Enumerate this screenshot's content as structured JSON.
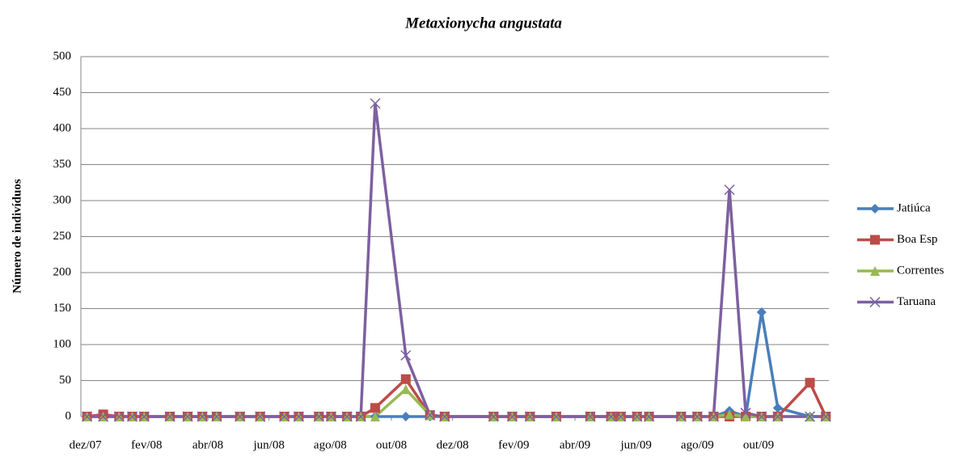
{
  "chart_data": {
    "type": "line",
    "title": "Metaxionycha angustata",
    "ylabel": "Número de indivíduos",
    "x": [
      0.05,
      0.58,
      1.1,
      1.53,
      1.92,
      2.76,
      3.34,
      3.82,
      4.29,
      5.05,
      5.71,
      6.5,
      6.97,
      7.63,
      8.03,
      8.55,
      9.0,
      9.47,
      10.47,
      11.26,
      11.74,
      13.34,
      13.95,
      14.53,
      15.39,
      16.5,
      17.18,
      17.5,
      18.03,
      18.42,
      19.47,
      20.0,
      20.53,
      21.05,
      21.58,
      22.1,
      22.63,
      23.68,
      24.2
    ],
    "xlim": [
      -0.15,
      24.3
    ],
    "xticks": [
      {
        "value": 0,
        "label": "dez/07"
      },
      {
        "value": 2,
        "label": "fev/08"
      },
      {
        "value": 4,
        "label": "abr/08"
      },
      {
        "value": 6,
        "label": "jun/08"
      },
      {
        "value": 8,
        "label": "ago/08"
      },
      {
        "value": 10,
        "label": "out/08"
      },
      {
        "value": 12,
        "label": "dez/08"
      },
      {
        "value": 14,
        "label": "fev/09"
      },
      {
        "value": 16,
        "label": "abr/09"
      },
      {
        "value": 18,
        "label": "jun/09"
      },
      {
        "value": 20,
        "label": "ago/09"
      },
      {
        "value": 22,
        "label": "out/09"
      }
    ],
    "ylim": [
      0,
      500
    ],
    "yticks": [
      0,
      50,
      100,
      150,
      200,
      250,
      300,
      350,
      400,
      450,
      500
    ],
    "grid": true,
    "legend": "right",
    "series": [
      {
        "name": "Jatiúca",
        "color": "#4a7ebb",
        "marker": "diamond",
        "values": [
          0,
          0,
          0,
          0,
          0,
          0,
          0,
          0,
          0,
          0,
          0,
          0,
          0,
          0,
          0,
          0,
          0,
          0,
          0,
          0,
          0,
          0,
          0,
          0,
          0,
          0,
          0,
          0,
          0,
          0,
          0,
          0,
          0,
          8,
          0,
          145,
          12,
          0,
          0
        ]
      },
      {
        "name": "Boa Esp",
        "color": "#be4b48",
        "marker": "square",
        "values": [
          0,
          3,
          0,
          0,
          0,
          0,
          0,
          0,
          0,
          0,
          0,
          0,
          0,
          0,
          0,
          0,
          0,
          12,
          52,
          2,
          0,
          0,
          0,
          0,
          0,
          0,
          0,
          0,
          0,
          0,
          0,
          0,
          0,
          0,
          0,
          0,
          0,
          47,
          0
        ]
      },
      {
        "name": "Correntes",
        "color": "#98b954",
        "marker": "triangle",
        "values": [
          0,
          0,
          0,
          0,
          0,
          0,
          0,
          0,
          0,
          0,
          0,
          0,
          0,
          0,
          0,
          0,
          0,
          0,
          38,
          2,
          0,
          0,
          0,
          0,
          0,
          0,
          0,
          0,
          0,
          0,
          0,
          0,
          0,
          3,
          0,
          0,
          0,
          0,
          0
        ]
      },
      {
        "name": "Taruana",
        "color": "#7d60a0",
        "marker": "x",
        "values": [
          0,
          0,
          0,
          0,
          0,
          0,
          0,
          0,
          0,
          0,
          0,
          0,
          0,
          0,
          0,
          0,
          0,
          435,
          85,
          2,
          0,
          0,
          0,
          0,
          0,
          0,
          0,
          0,
          0,
          0,
          0,
          0,
          0,
          315,
          5,
          0,
          0,
          0,
          0
        ]
      }
    ]
  }
}
